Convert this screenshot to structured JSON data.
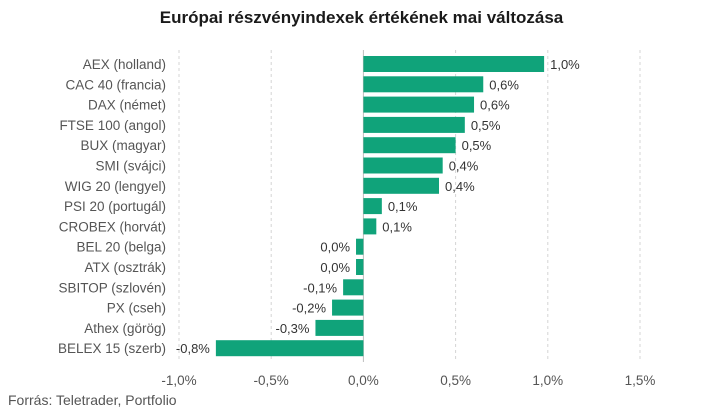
{
  "chart_data": {
    "type": "bar",
    "orientation": "horizontal",
    "title": "Európai részvényindexek értékének mai változása",
    "source": "Forrás: Teletrader, Portfolio",
    "color": "#10a37a",
    "categories": [
      "AEX (holland)",
      "CAC 40 (francia)",
      "DAX (német)",
      "FTSE 100 (angol)",
      "BUX (magyar)",
      "SMI (svájci)",
      "WIG 20 (lengyel)",
      "PSI 20 (portugál)",
      "CROBEX (horvát)",
      "BEL 20 (belga)",
      "ATX (osztrák)",
      "SBITOP (szlovén)",
      "PX (cseh)",
      "Athex (görög)",
      "BELEX 15 (szerb)"
    ],
    "values": [
      0.98,
      0.65,
      0.6,
      0.55,
      0.5,
      0.43,
      0.41,
      0.1,
      0.07,
      -0.04,
      -0.04,
      -0.11,
      -0.17,
      -0.26,
      -0.8
    ],
    "labels": [
      "1,0%",
      "0,6%",
      "0,6%",
      "0,5%",
      "0,5%",
      "0,4%",
      "0,4%",
      "0,1%",
      "0,1%",
      "0,0%",
      "0,0%",
      "-0,1%",
      "-0,2%",
      "-0,3%",
      "-0,8%"
    ],
    "xlim": [
      -1.0,
      1.5
    ],
    "xticks": [
      -1.0,
      -0.5,
      0.0,
      0.5,
      1.0,
      1.5
    ],
    "xtick_labels": [
      "-1,0%",
      "-0,5%",
      "0,0%",
      "0,5%",
      "1,0%",
      "1,5%"
    ],
    "grid": true
  }
}
